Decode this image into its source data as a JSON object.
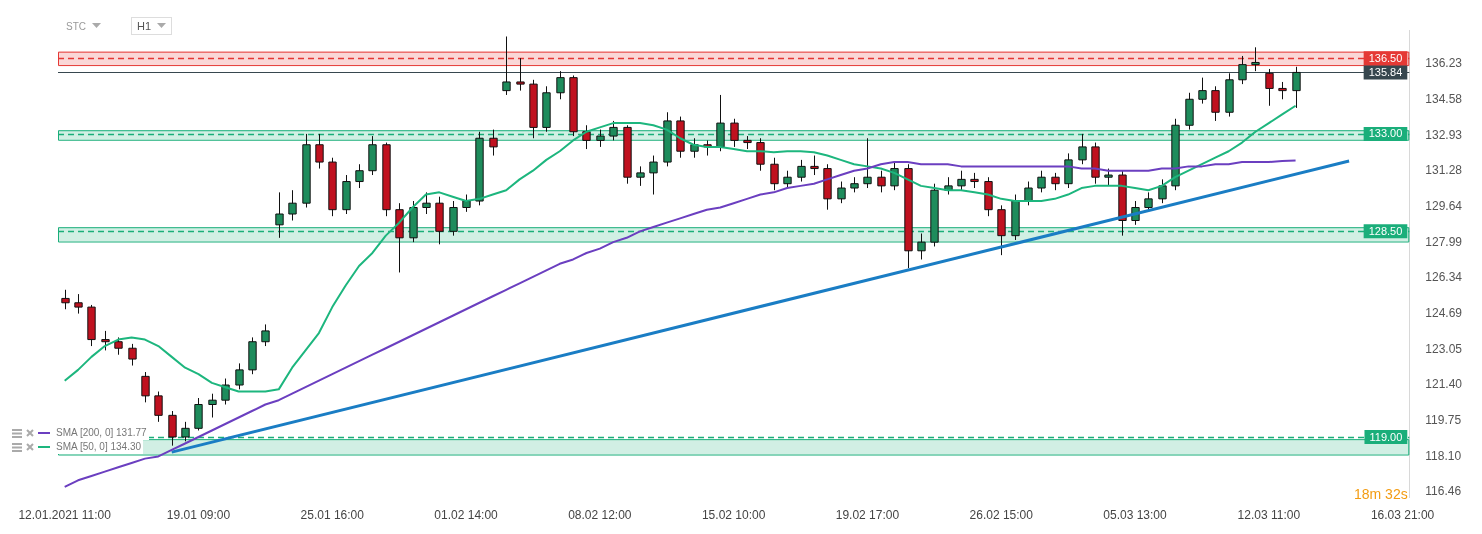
{
  "chart_data": {
    "type": "candlestick",
    "categories": [
      "12.01.2021 11:00",
      null,
      null,
      null,
      null,
      null,
      null,
      null,
      null,
      null,
      "19.01 09:00",
      null,
      null,
      null,
      null,
      null,
      null,
      null,
      null,
      null,
      "25.01 16:00",
      null,
      null,
      null,
      null,
      null,
      null,
      null,
      null,
      null,
      "01.02 14:00",
      null,
      null,
      null,
      null,
      null,
      null,
      null,
      null,
      null,
      "08.02 12:00",
      null,
      null,
      null,
      null,
      null,
      null,
      null,
      null,
      null,
      "15.02 10:00",
      null,
      null,
      null,
      null,
      null,
      null,
      null,
      null,
      null,
      "19.02 17:00",
      null,
      null,
      null,
      null,
      null,
      null,
      null,
      null,
      null,
      "26.02 15:00",
      null,
      null,
      null,
      null,
      null,
      null,
      null,
      null,
      null,
      "05.03 13:00",
      null,
      null,
      null,
      null,
      null,
      null,
      null,
      null,
      null,
      "12.03 11:00",
      null,
      null,
      null,
      null,
      null,
      null,
      null,
      null,
      null,
      "16.03 21:00"
    ],
    "ohlc": [
      [
        125.4,
        125.8,
        124.9,
        125.2
      ],
      [
        125.2,
        125.6,
        124.7,
        125.0
      ],
      [
        125.0,
        125.1,
        123.2,
        123.5
      ],
      [
        123.5,
        123.9,
        123.0,
        123.4
      ],
      [
        123.4,
        123.6,
        122.8,
        123.1
      ],
      [
        123.1,
        123.3,
        122.3,
        122.6
      ],
      [
        121.8,
        122.0,
        120.6,
        120.9
      ],
      [
        120.9,
        121.1,
        119.7,
        120.0
      ],
      [
        120.0,
        120.2,
        118.6,
        119.0
      ],
      [
        119.0,
        119.7,
        118.8,
        119.4
      ],
      [
        119.4,
        120.8,
        119.3,
        120.5
      ],
      [
        120.5,
        121.0,
        119.9,
        120.7
      ],
      [
        120.7,
        121.7,
        120.5,
        121.4
      ],
      [
        121.4,
        122.4,
        121.2,
        122.1
      ],
      [
        122.1,
        123.6,
        121.9,
        123.4
      ],
      [
        123.4,
        124.2,
        123.2,
        123.9
      ],
      [
        128.8,
        130.3,
        128.2,
        129.3
      ],
      [
        129.3,
        130.4,
        129.0,
        129.8
      ],
      [
        129.8,
        133.0,
        129.6,
        132.5
      ],
      [
        132.5,
        133.0,
        131.4,
        131.7
      ],
      [
        131.7,
        131.9,
        129.2,
        129.5
      ],
      [
        129.5,
        131.1,
        129.3,
        130.8
      ],
      [
        130.8,
        131.6,
        130.5,
        131.3
      ],
      [
        131.3,
        132.9,
        131.1,
        132.5
      ],
      [
        132.5,
        132.6,
        129.2,
        129.5
      ],
      [
        129.5,
        129.8,
        126.6,
        128.2
      ],
      [
        128.2,
        129.9,
        128.0,
        129.6
      ],
      [
        129.6,
        130.3,
        129.3,
        129.8
      ],
      [
        129.8,
        130.1,
        127.9,
        128.5
      ],
      [
        128.5,
        129.9,
        128.3,
        129.6
      ],
      [
        129.6,
        130.2,
        129.4,
        129.9
      ],
      [
        129.9,
        133.1,
        129.7,
        132.8
      ],
      [
        132.8,
        133.2,
        132.0,
        132.4
      ],
      [
        135.0,
        137.5,
        134.8,
        135.4
      ],
      [
        135.4,
        136.5,
        135.0,
        135.3
      ],
      [
        135.3,
        135.5,
        132.8,
        133.3
      ],
      [
        133.3,
        135.2,
        133.1,
        134.9
      ],
      [
        134.9,
        135.9,
        134.6,
        135.6
      ],
      [
        135.6,
        135.7,
        132.9,
        133.1
      ],
      [
        133.1,
        133.4,
        132.3,
        132.7
      ],
      [
        132.7,
        133.2,
        132.4,
        132.9
      ],
      [
        132.9,
        133.6,
        132.7,
        133.3
      ],
      [
        133.3,
        133.4,
        130.7,
        131.0
      ],
      [
        131.0,
        131.5,
        130.6,
        131.2
      ],
      [
        131.2,
        132.0,
        130.2,
        131.7
      ],
      [
        131.7,
        134.0,
        131.5,
        133.6
      ],
      [
        133.6,
        133.8,
        131.9,
        132.2
      ],
      [
        132.2,
        132.8,
        131.9,
        132.5
      ],
      [
        132.5,
        132.7,
        132.0,
        132.4
      ],
      [
        132.4,
        134.8,
        132.2,
        133.5
      ],
      [
        133.5,
        133.7,
        132.4,
        132.7
      ],
      [
        132.7,
        132.9,
        132.3,
        132.6
      ],
      [
        132.6,
        132.8,
        131.3,
        131.6
      ],
      [
        131.6,
        131.9,
        130.4,
        130.7
      ],
      [
        130.7,
        131.3,
        130.5,
        131.0
      ],
      [
        131.0,
        131.8,
        130.8,
        131.5
      ],
      [
        131.5,
        132.0,
        131.1,
        131.4
      ],
      [
        131.4,
        131.6,
        129.5,
        130.0
      ],
      [
        130.0,
        130.8,
        129.8,
        130.5
      ],
      [
        130.5,
        131.0,
        130.3,
        130.7
      ],
      [
        130.7,
        132.8,
        130.5,
        131.0
      ],
      [
        131.0,
        131.3,
        130.3,
        130.6
      ],
      [
        130.6,
        131.7,
        130.4,
        131.4
      ],
      [
        131.4,
        131.6,
        126.8,
        127.6
      ],
      [
        127.6,
        128.4,
        127.2,
        128.0
      ],
      [
        128.0,
        130.7,
        127.8,
        130.4
      ],
      [
        130.4,
        131.0,
        130.2,
        130.6
      ],
      [
        130.6,
        131.3,
        130.4,
        130.9
      ],
      [
        130.9,
        131.2,
        130.5,
        130.8
      ],
      [
        130.8,
        131.0,
        129.2,
        129.5
      ],
      [
        129.5,
        129.7,
        127.4,
        128.3
      ],
      [
        128.3,
        130.2,
        128.1,
        129.9
      ],
      [
        129.9,
        130.8,
        129.7,
        130.5
      ],
      [
        130.5,
        131.3,
        130.3,
        131.0
      ],
      [
        131.0,
        131.2,
        130.4,
        130.7
      ],
      [
        130.7,
        132.1,
        130.5,
        131.8
      ],
      [
        131.8,
        133.0,
        131.6,
        132.4
      ],
      [
        132.4,
        132.6,
        130.7,
        131.0
      ],
      [
        131.0,
        131.4,
        130.6,
        131.1
      ],
      [
        131.1,
        131.3,
        128.3,
        129.0
      ],
      [
        129.0,
        129.9,
        128.8,
        129.6
      ],
      [
        129.6,
        130.3,
        129.4,
        130.0
      ],
      [
        130.0,
        130.9,
        129.8,
        130.6
      ],
      [
        130.6,
        133.7,
        130.4,
        133.4
      ],
      [
        133.4,
        134.9,
        133.2,
        134.6
      ],
      [
        134.6,
        135.6,
        134.4,
        135.0
      ],
      [
        135.0,
        135.2,
        133.6,
        134.0
      ],
      [
        134.0,
        135.8,
        133.8,
        135.5
      ],
      [
        135.5,
        136.6,
        135.3,
        136.2
      ],
      [
        136.2,
        137.0,
        135.9,
        136.3
      ],
      [
        135.8,
        136.0,
        134.3,
        135.1
      ],
      [
        135.1,
        135.4,
        134.6,
        135.0
      ],
      [
        135.0,
        136.1,
        134.2,
        135.84
      ],
      null,
      null,
      null,
      null,
      null,
      null,
      null,
      null
    ],
    "colors": [
      "#c0111f",
      "#c0111f",
      "#c0111f",
      "#c0111f",
      "#c0111f",
      "#c0111f",
      "#c0111f",
      "#c0111f",
      "#c0111f",
      "#1e8c5c",
      "#1e8c5c",
      "#1e8c5c",
      "#1e8c5c",
      "#1e8c5c",
      "#1e8c5c",
      "#1e8c5c",
      "#1e8c5c",
      "#1e8c5c",
      "#1e8c5c",
      "#c0111f",
      "#c0111f",
      "#1e8c5c",
      "#1e8c5c",
      "#1e8c5c",
      "#c0111f",
      "#c0111f",
      "#1e8c5c",
      "#1e8c5c",
      "#c0111f",
      "#1e8c5c",
      "#1e8c5c",
      "#1e8c5c",
      "#c0111f",
      "#1e8c5c",
      "#c0111f",
      "#c0111f",
      "#1e8c5c",
      "#1e8c5c",
      "#c0111f",
      "#c0111f",
      "#1e8c5c",
      "#1e8c5c",
      "#c0111f",
      "#1e8c5c",
      "#1e8c5c",
      "#1e8c5c",
      "#c0111f",
      "#1e8c5c",
      "#c0111f",
      "#1e8c5c",
      "#c0111f",
      "#c0111f",
      "#c0111f",
      "#c0111f",
      "#1e8c5c",
      "#1e8c5c",
      "#c0111f",
      "#c0111f",
      "#1e8c5c",
      "#1e8c5c",
      "#1e8c5c",
      "#c0111f",
      "#1e8c5c",
      "#c0111f",
      "#1e8c5c",
      "#1e8c5c",
      "#1e8c5c",
      "#1e8c5c",
      "#c0111f",
      "#c0111f",
      "#c0111f",
      "#1e8c5c",
      "#1e8c5c",
      "#1e8c5c",
      "#c0111f",
      "#1e8c5c",
      "#1e8c5c",
      "#c0111f",
      "#1e8c5c",
      "#c0111f",
      "#1e8c5c",
      "#1e8c5c",
      "#1e8c5c",
      "#1e8c5c",
      "#1e8c5c",
      "#1e8c5c",
      "#c0111f",
      "#1e8c5c",
      "#1e8c5c",
      "#1e8c5c",
      "#c0111f",
      "#c0111f",
      "#1e8c5c",
      null,
      null,
      null,
      null,
      null,
      null,
      null,
      null
    ],
    "series": [
      {
        "name": "SMA [200, 0] 131.77",
        "type": "line",
        "color": "#6b3fc0",
        "values": [
          116.7,
          117.0,
          117.2,
          117.4,
          117.6,
          117.8,
          118.0,
          118.1,
          118.4,
          118.7,
          119.0,
          119.3,
          119.6,
          119.9,
          120.2,
          120.5,
          120.7,
          121.0,
          121.3,
          121.6,
          121.9,
          122.2,
          122.5,
          122.8,
          123.1,
          123.4,
          123.7,
          124.0,
          124.3,
          124.6,
          124.9,
          125.2,
          125.5,
          125.8,
          126.1,
          126.4,
          126.7,
          127.0,
          127.2,
          127.5,
          127.7,
          128.0,
          128.2,
          128.5,
          128.7,
          128.9,
          129.1,
          129.3,
          129.5,
          129.6,
          129.8,
          130.0,
          130.2,
          130.3,
          130.5,
          130.6,
          130.7,
          130.9,
          131.1,
          131.3,
          131.4,
          131.6,
          131.7,
          131.7,
          131.6,
          131.6,
          131.6,
          131.5,
          131.5,
          131.5,
          131.5,
          131.5,
          131.5,
          131.5,
          131.5,
          131.5,
          131.4,
          131.4,
          131.3,
          131.3,
          131.3,
          131.3,
          131.4,
          131.4,
          131.5,
          131.5,
          131.6,
          131.6,
          131.7,
          131.7,
          131.7,
          131.75,
          131.77,
          null,
          null,
          null,
          null,
          null,
          null,
          null,
          null
        ]
      },
      {
        "name": "SMA [50, 0] 134.30",
        "type": "line",
        "color": "#1db67e",
        "values": [
          121.6,
          122.1,
          122.7,
          123.2,
          123.5,
          123.6,
          123.5,
          123.2,
          122.7,
          122.2,
          121.9,
          121.5,
          121.3,
          121.1,
          121.1,
          121.1,
          121.2,
          122.2,
          123.0,
          123.8,
          125.0,
          126.0,
          126.9,
          127.5,
          128.3,
          128.9,
          129.6,
          130.2,
          130.3,
          130.1,
          129.9,
          130.0,
          130.2,
          130.4,
          130.9,
          131.3,
          131.8,
          132.2,
          132.7,
          133.1,
          133.3,
          133.5,
          133.5,
          133.5,
          133.4,
          133.2,
          132.8,
          132.5,
          132.4,
          132.4,
          132.3,
          132.2,
          132.2,
          132.15,
          132.2,
          132.2,
          132.15,
          132.0,
          131.8,
          131.6,
          131.5,
          131.4,
          131.2,
          130.9,
          130.6,
          130.5,
          130.4,
          130.4,
          130.3,
          130.2,
          130.0,
          129.9,
          129.9,
          129.9,
          130.0,
          130.2,
          130.5,
          130.6,
          130.6,
          130.6,
          130.5,
          130.4,
          130.6,
          131.0,
          131.3,
          131.6,
          131.9,
          132.2,
          132.6,
          133.1,
          133.5,
          133.9,
          134.3,
          null,
          null,
          null,
          null,
          null,
          null,
          null,
          null
        ]
      },
      {
        "type": "line",
        "color": "#1a7dc4",
        "values": [
          null,
          null,
          null,
          null,
          null,
          null,
          null,
          null,
          118.3,
          null,
          null,
          null,
          null,
          null,
          null,
          null,
          null,
          null,
          null,
          null,
          null,
          null,
          null,
          null,
          null,
          null,
          null,
          null,
          null,
          null,
          null,
          null,
          null,
          null,
          null,
          null,
          null,
          null,
          null,
          null,
          null,
          null,
          null,
          null,
          null,
          null,
          null,
          null,
          null,
          null,
          null,
          null,
          null,
          null,
          null,
          null,
          null,
          null,
          null,
          null,
          null,
          null,
          null,
          null,
          null,
          null,
          null,
          null,
          null,
          null,
          null,
          null,
          null,
          null,
          null,
          null,
          null,
          null,
          null,
          null,
          null,
          null,
          null,
          null,
          null,
          null,
          null,
          null,
          null,
          null,
          null,
          null,
          null,
          null,
          null,
          null,
          131.75,
          null,
          null,
          null,
          null
        ]
      }
    ],
    "ylim": [
      116.2,
      137.8
    ],
    "yticks": [
      116.46,
      {
        "value": 118.1,
        "label": "118.10"
      },
      119.75,
      {
        "value": 121.4,
        "label": "121.40"
      },
      123.05,
      124.69,
      126.34,
      127.99,
      129.64,
      131.28,
      132.93,
      134.58,
      136.23
    ],
    "ref_lines": [
      {
        "axis": "y",
        "value": 136.5,
        "label": "136.50",
        "color": "#e53935",
        "line_style": "dashed"
      },
      {
        "axis": "y",
        "value": 135.84,
        "label": "135.84",
        "color": "#37474f",
        "line_style": "solid"
      },
      {
        "axis": "y",
        "value": 133,
        "label": "133.00",
        "color": "#1aae7a",
        "line_style": "dashed"
      },
      {
        "axis": "y",
        "value": 128.5,
        "label": "128.50",
        "color": "#1aae7a",
        "line_style": "dashed"
      },
      {
        "axis": "y",
        "value": 119,
        "label": "119.00",
        "color": "#1aae7a",
        "line_style": "dashed"
      }
    ],
    "bands": [
      {
        "axis": "y",
        "from": 136.18,
        "to": 136.8,
        "color": "#e53935"
      },
      {
        "axis": "y",
        "from": 132.73,
        "to": 133.17,
        "color": "#1aae7a"
      },
      {
        "axis": "y",
        "from": 128.03,
        "to": 128.69,
        "color": "#1aae7a"
      },
      {
        "axis": "y",
        "from": 118.19,
        "to": 118.9,
        "color": "#1aae7a"
      }
    ],
    "annotations": [
      "STC",
      "H1",
      "18m 32s"
    ],
    "legend": "bottom left",
    "grid": false,
    "marker": "none"
  }
}
